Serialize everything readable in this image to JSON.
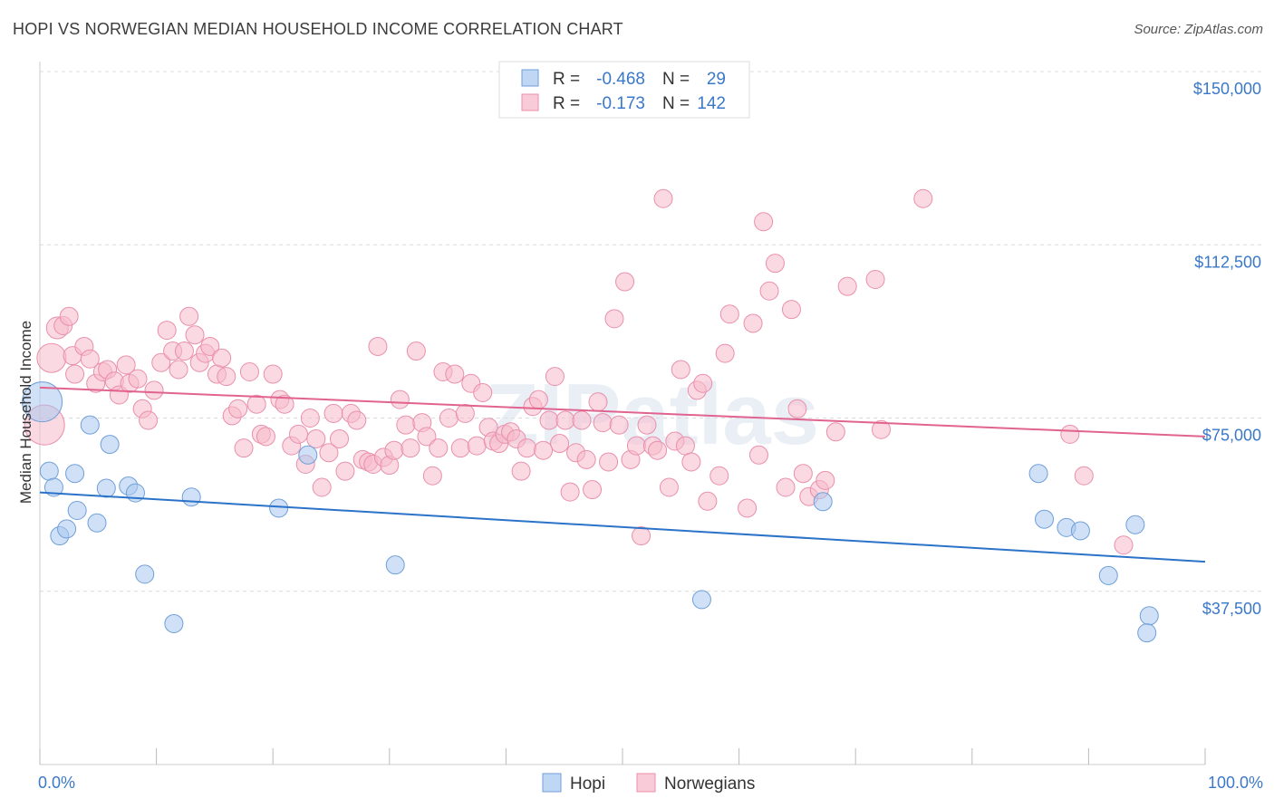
{
  "title": "HOPI VS NORWEGIAN MEDIAN HOUSEHOLD INCOME CORRELATION CHART",
  "source": "Source: ZipAtlas.com",
  "watermark": "ZIPatlas",
  "chart_data": {
    "type": "scatter",
    "xlabel": "",
    "ylabel": "Median Household Income",
    "xlim": [
      0,
      100
    ],
    "ylim": [
      0,
      150000
    ],
    "x_tick_labels": [
      "0.0%",
      "100.0%"
    ],
    "y_ticks": [
      37500,
      75000,
      112500,
      150000
    ],
    "y_tick_labels": [
      "$37,500",
      "$75,000",
      "$112,500",
      "$150,000"
    ],
    "grid": "horizontal dashed",
    "legend_top": [
      {
        "r_label": "R =",
        "r_value": "-0.468",
        "n_label": "N =",
        "n_value": "29"
      },
      {
        "r_label": "R =",
        "r_value": "-0.173",
        "n_label": "N =",
        "n_value": "142"
      }
    ],
    "series": [
      {
        "name": "Hopi",
        "color": "#a9c8f0",
        "stroke": "#6f9fd8",
        "line_color": "#2b72c9",
        "trend": [
          [
            0,
            58900
          ],
          [
            100,
            43900
          ]
        ],
        "points": [
          [
            0.2,
            78500,
            22
          ],
          [
            0.8,
            63500,
            10
          ],
          [
            1.2,
            60000,
            10
          ],
          [
            1.7,
            49500,
            10
          ],
          [
            2.3,
            51000,
            10
          ],
          [
            3.0,
            63000,
            10
          ],
          [
            3.2,
            55000,
            10
          ],
          [
            4.3,
            73500,
            10
          ],
          [
            4.9,
            52300,
            10
          ],
          [
            5.7,
            59800,
            10
          ],
          [
            6.0,
            69300,
            10
          ],
          [
            7.6,
            60300,
            10
          ],
          [
            8.2,
            58800,
            10
          ],
          [
            9.0,
            41200,
            10
          ],
          [
            11.5,
            30500,
            10
          ],
          [
            13.0,
            57900,
            10
          ],
          [
            20.5,
            55500,
            10
          ],
          [
            23.0,
            67000,
            10
          ],
          [
            30.5,
            43200,
            10
          ],
          [
            56.8,
            35700,
            10
          ],
          [
            67.2,
            56900,
            10
          ],
          [
            85.7,
            63000,
            10
          ],
          [
            86.2,
            53100,
            10
          ],
          [
            88.1,
            51300,
            10
          ],
          [
            89.3,
            50600,
            10
          ],
          [
            91.7,
            40900,
            10
          ],
          [
            94.0,
            51900,
            10
          ],
          [
            95.2,
            32200,
            10
          ],
          [
            95.0,
            28500,
            10
          ]
        ]
      },
      {
        "name": "Norwegians",
        "color": "#f7b9cb",
        "stroke": "#e98fab",
        "line_color": "#e0648f",
        "trend": [
          [
            0,
            81600
          ],
          [
            100,
            71000
          ]
        ],
        "points": [
          [
            0.4,
            73500,
            22
          ],
          [
            1.0,
            88000,
            16
          ],
          [
            1.5,
            94500,
            12
          ],
          [
            2.0,
            95000,
            10
          ],
          [
            2.5,
            97000,
            10
          ],
          [
            2.8,
            88500,
            10
          ],
          [
            3.0,
            84500,
            10
          ],
          [
            3.8,
            90500,
            10
          ],
          [
            4.3,
            87800,
            10
          ],
          [
            4.8,
            82500,
            10
          ],
          [
            5.4,
            85000,
            10
          ],
          [
            5.8,
            85500,
            10
          ],
          [
            6.4,
            83000,
            10
          ],
          [
            6.8,
            80000,
            10
          ],
          [
            7.4,
            86500,
            10
          ],
          [
            7.7,
            82500,
            10
          ],
          [
            8.4,
            83500,
            10
          ],
          [
            8.8,
            77000,
            10
          ],
          [
            9.3,
            74500,
            10
          ],
          [
            9.8,
            81000,
            10
          ],
          [
            10.4,
            87000,
            10
          ],
          [
            10.9,
            94000,
            10
          ],
          [
            11.4,
            89500,
            10
          ],
          [
            11.9,
            85500,
            10
          ],
          [
            12.4,
            89500,
            10
          ],
          [
            12.8,
            97000,
            10
          ],
          [
            13.3,
            93000,
            10
          ],
          [
            13.7,
            87000,
            10
          ],
          [
            14.2,
            89000,
            10
          ],
          [
            14.6,
            90500,
            10
          ],
          [
            15.2,
            84500,
            10
          ],
          [
            15.6,
            88000,
            10
          ],
          [
            16.0,
            84000,
            10
          ],
          [
            16.5,
            75500,
            10
          ],
          [
            17.0,
            77000,
            10
          ],
          [
            17.5,
            68500,
            10
          ],
          [
            18.0,
            85000,
            10
          ],
          [
            18.6,
            78000,
            10
          ],
          [
            19.0,
            71500,
            10
          ],
          [
            19.4,
            71000,
            10
          ],
          [
            20.0,
            84500,
            10
          ],
          [
            20.6,
            79000,
            10
          ],
          [
            21.0,
            78000,
            10
          ],
          [
            21.6,
            69000,
            10
          ],
          [
            22.2,
            71500,
            10
          ],
          [
            22.8,
            65000,
            10
          ],
          [
            23.2,
            75000,
            10
          ],
          [
            23.7,
            70500,
            10
          ],
          [
            24.2,
            60000,
            10
          ],
          [
            24.8,
            67500,
            10
          ],
          [
            25.2,
            76000,
            10
          ],
          [
            25.7,
            70500,
            10
          ],
          [
            26.2,
            63500,
            10
          ],
          [
            26.7,
            76000,
            10
          ],
          [
            27.2,
            74500,
            10
          ],
          [
            27.7,
            66000,
            10
          ],
          [
            28.2,
            65500,
            10
          ],
          [
            28.6,
            65000,
            10
          ],
          [
            29.0,
            90500,
            10
          ],
          [
            29.5,
            66500,
            10
          ],
          [
            30.0,
            64800,
            10
          ],
          [
            30.4,
            68000,
            10
          ],
          [
            30.9,
            79000,
            10
          ],
          [
            31.4,
            73500,
            10
          ],
          [
            31.8,
            68500,
            10
          ],
          [
            32.3,
            89500,
            10
          ],
          [
            32.8,
            74000,
            10
          ],
          [
            33.2,
            71000,
            10
          ],
          [
            33.7,
            62500,
            10
          ],
          [
            34.2,
            68500,
            10
          ],
          [
            34.6,
            85000,
            10
          ],
          [
            35.1,
            75000,
            10
          ],
          [
            35.6,
            84500,
            10
          ],
          [
            36.1,
            68500,
            10
          ],
          [
            36.5,
            76000,
            10
          ],
          [
            37.0,
            82500,
            10
          ],
          [
            37.5,
            69000,
            10
          ],
          [
            38.0,
            80500,
            10
          ],
          [
            38.5,
            73000,
            10
          ],
          [
            38.9,
            70000,
            10
          ],
          [
            39.4,
            69500,
            10
          ],
          [
            39.9,
            71500,
            10
          ],
          [
            40.4,
            72000,
            10
          ],
          [
            40.9,
            70500,
            10
          ],
          [
            41.3,
            63500,
            10
          ],
          [
            41.8,
            68500,
            10
          ],
          [
            42.3,
            77500,
            10
          ],
          [
            42.8,
            79000,
            10
          ],
          [
            43.2,
            68000,
            10
          ],
          [
            43.7,
            74500,
            10
          ],
          [
            44.2,
            84000,
            10
          ],
          [
            44.6,
            69500,
            10
          ],
          [
            45.1,
            74500,
            10
          ],
          [
            45.5,
            59000,
            10
          ],
          [
            46.0,
            67500,
            10
          ],
          [
            46.5,
            74500,
            10
          ],
          [
            46.9,
            66000,
            10
          ],
          [
            47.4,
            59500,
            10
          ],
          [
            47.9,
            78500,
            10
          ],
          [
            48.3,
            74000,
            10
          ],
          [
            48.8,
            65500,
            10
          ],
          [
            49.3,
            96500,
            10
          ],
          [
            49.7,
            73500,
            10
          ],
          [
            50.2,
            104500,
            10
          ],
          [
            50.7,
            66000,
            10
          ],
          [
            51.2,
            69000,
            10
          ],
          [
            51.6,
            49500,
            10
          ],
          [
            52.1,
            73500,
            10
          ],
          [
            52.6,
            69000,
            10
          ],
          [
            53.0,
            68000,
            10
          ],
          [
            53.5,
            122500,
            10
          ],
          [
            54.0,
            60000,
            10
          ],
          [
            54.5,
            70000,
            10
          ],
          [
            55.0,
            85500,
            10
          ],
          [
            55.4,
            69000,
            10
          ],
          [
            55.9,
            65500,
            10
          ],
          [
            56.4,
            81000,
            10
          ],
          [
            56.9,
            82500,
            10
          ],
          [
            57.3,
            57000,
            10
          ],
          [
            58.3,
            62500,
            10
          ],
          [
            58.8,
            89000,
            10
          ],
          [
            59.2,
            97500,
            10
          ],
          [
            60.7,
            55500,
            10
          ],
          [
            61.2,
            95500,
            10
          ],
          [
            61.7,
            67000,
            10
          ],
          [
            62.1,
            117500,
            10
          ],
          [
            62.6,
            102500,
            10
          ],
          [
            63.1,
            108500,
            10
          ],
          [
            64.0,
            60000,
            10
          ],
          [
            64.5,
            98500,
            10
          ],
          [
            65.0,
            77000,
            10
          ],
          [
            65.5,
            63000,
            10
          ],
          [
            66.0,
            58000,
            10
          ],
          [
            66.9,
            59500,
            10
          ],
          [
            67.4,
            61500,
            10
          ],
          [
            68.3,
            72000,
            10
          ],
          [
            69.3,
            103500,
            10
          ],
          [
            71.7,
            105000,
            10
          ],
          [
            72.2,
            72500,
            10
          ],
          [
            75.8,
            122500,
            10
          ],
          [
            88.4,
            71500,
            10
          ],
          [
            89.6,
            62500,
            10
          ],
          [
            93.0,
            47500,
            10
          ]
        ]
      }
    ]
  }
}
